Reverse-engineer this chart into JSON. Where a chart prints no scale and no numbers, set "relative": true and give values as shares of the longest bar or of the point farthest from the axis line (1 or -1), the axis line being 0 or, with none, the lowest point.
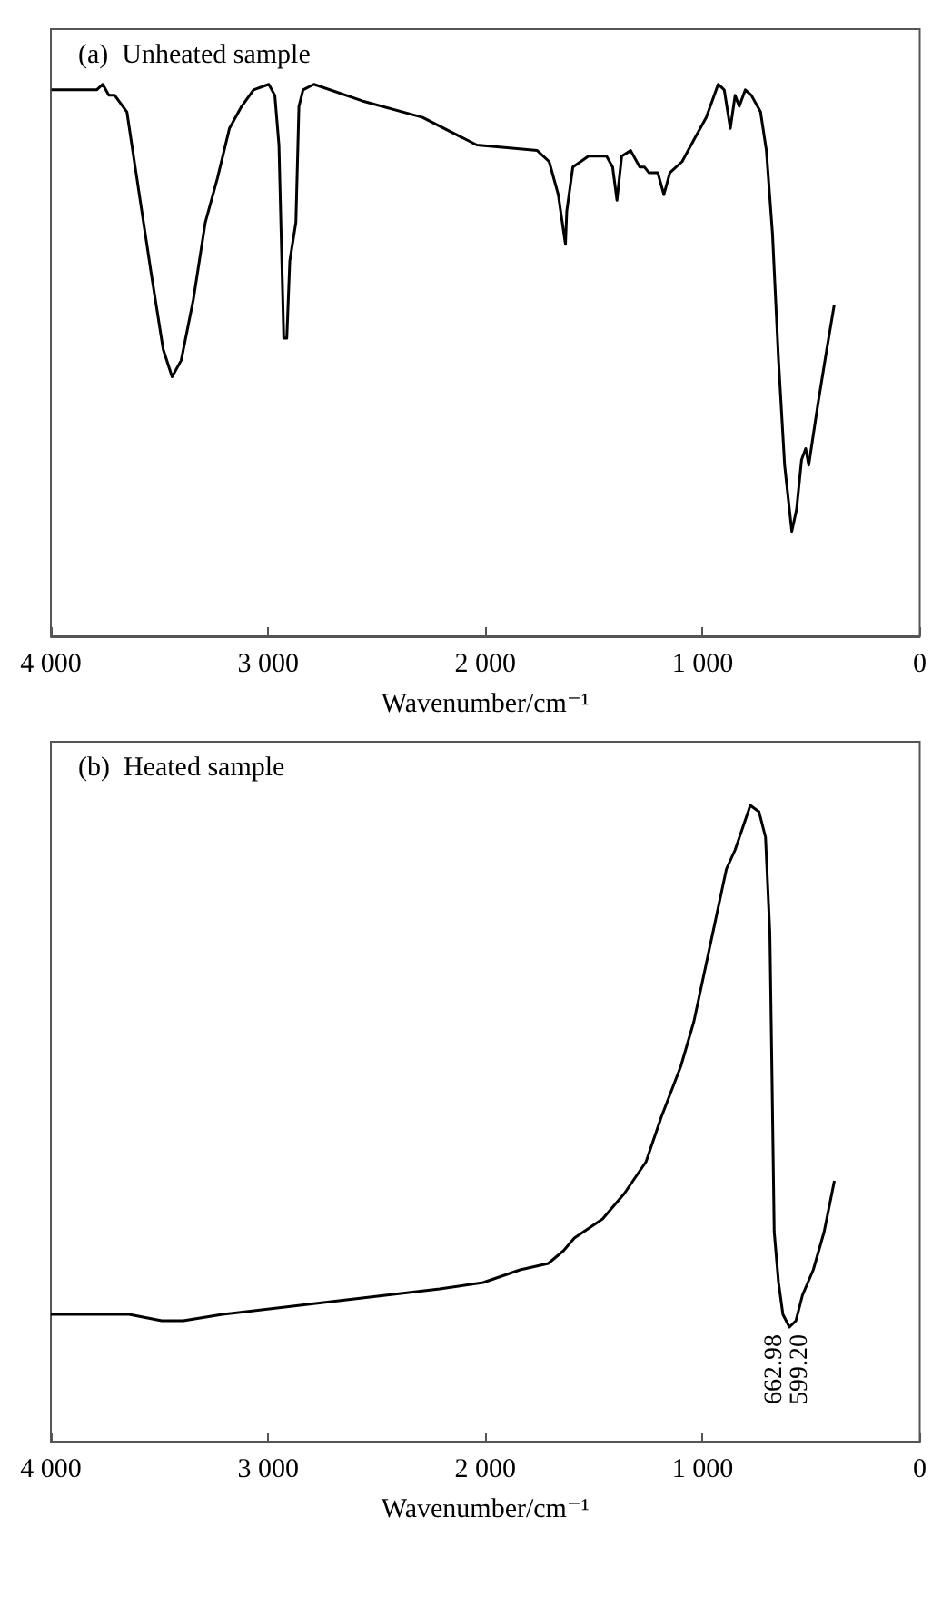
{
  "chart_data": [
    {
      "type": "line",
      "title": "(a)  Unheated sample",
      "xlabel": "Wavenumber/cm⁻¹",
      "relative": true,
      "xlim": [
        4000,
        0
      ],
      "xticks": [
        {
          "value": 4000,
          "label": "4 000"
        },
        {
          "value": 3000,
          "label": "3 000"
        },
        {
          "value": 2000,
          "label": "2 000"
        },
        {
          "value": 1000,
          "label": "1 000"
        },
        0
      ],
      "tick_labels": "x",
      "grid": false,
      "marker": "none",
      "line_style": "solid",
      "series": [
        {
          "color": "#000000",
          "x": [
            3997,
            3789,
            3761,
            3733,
            3706,
            3650,
            3608,
            3539,
            3483,
            3442,
            3400,
            3344,
            3289,
            3233,
            3178,
            3122,
            3067,
            2997,
            2969,
            2950,
            2928,
            2914,
            2900,
            2872,
            2858,
            2839,
            2789,
            2567,
            2289,
            2039,
            1761,
            1706,
            1664,
            1631,
            1625,
            1597,
            1525,
            1442,
            1414,
            1394,
            1372,
            1331,
            1289,
            1267,
            1247,
            1206,
            1178,
            1150,
            1094,
            1039,
            983,
            928,
            900,
            872,
            850,
            831,
            803,
            775,
            733,
            706,
            678,
            650,
            622,
            589,
            567,
            544,
            525,
            511,
            469,
            428,
            394
          ],
          "values": [
            0.99,
            0.99,
            1.0,
            0.98,
            0.98,
            0.95,
            0.84,
            0.66,
            0.52,
            0.47,
            0.5,
            0.61,
            0.75,
            0.83,
            0.92,
            0.96,
            0.99,
            1.0,
            0.98,
            0.89,
            0.54,
            0.54,
            0.68,
            0.75,
            0.96,
            0.99,
            1.0,
            0.97,
            0.94,
            0.89,
            0.88,
            0.86,
            0.8,
            0.71,
            0.77,
            0.85,
            0.87,
            0.87,
            0.85,
            0.79,
            0.87,
            0.88,
            0.85,
            0.85,
            0.84,
            0.84,
            0.8,
            0.84,
            0.86,
            0.9,
            0.94,
            1.0,
            0.99,
            0.92,
            0.98,
            0.96,
            0.99,
            0.98,
            0.95,
            0.88,
            0.73,
            0.5,
            0.31,
            0.19,
            0.23,
            0.32,
            0.34,
            0.31,
            0.42,
            0.52,
            0.6
          ]
        }
      ]
    },
    {
      "type": "line",
      "title": "(b)  Heated sample",
      "xlabel": "Wavenumber/cm⁻¹",
      "relative": true,
      "xlim": [
        4000,
        0
      ],
      "xticks": [
        {
          "value": 4000,
          "label": "4 000"
        },
        {
          "value": 3000,
          "label": "3 000"
        },
        {
          "value": 2000,
          "label": "2 000"
        },
        {
          "value": 1000,
          "label": "1 000"
        },
        0
      ],
      "tick_labels": "x",
      "grid": false,
      "marker": "none",
      "line_style": "solid",
      "annotations": [
        "662.98",
        "599.20"
      ],
      "series": [
        {
          "color": "#000000",
          "x": [
            4000,
            3640,
            3490,
            3390,
            3210,
            2710,
            2210,
            2010,
            1840,
            1710,
            1640,
            1590,
            1460,
            1360,
            1260,
            1190,
            1100,
            1040,
            990,
            940,
            890,
            850,
            810,
            780,
            740,
            710,
            690,
            680,
            670,
            650,
            630,
            600,
            570,
            540,
            490,
            440,
            393
          ],
          "values": [
            0.2,
            0.2,
            0.19,
            0.19,
            0.2,
            0.22,
            0.24,
            0.25,
            0.27,
            0.28,
            0.3,
            0.32,
            0.35,
            0.39,
            0.44,
            0.51,
            0.59,
            0.66,
            0.74,
            0.82,
            0.9,
            0.93,
            0.97,
            1.0,
            0.99,
            0.95,
            0.8,
            0.57,
            0.33,
            0.25,
            0.2,
            0.18,
            0.19,
            0.23,
            0.27,
            0.33,
            0.41
          ]
        }
      ]
    }
  ]
}
